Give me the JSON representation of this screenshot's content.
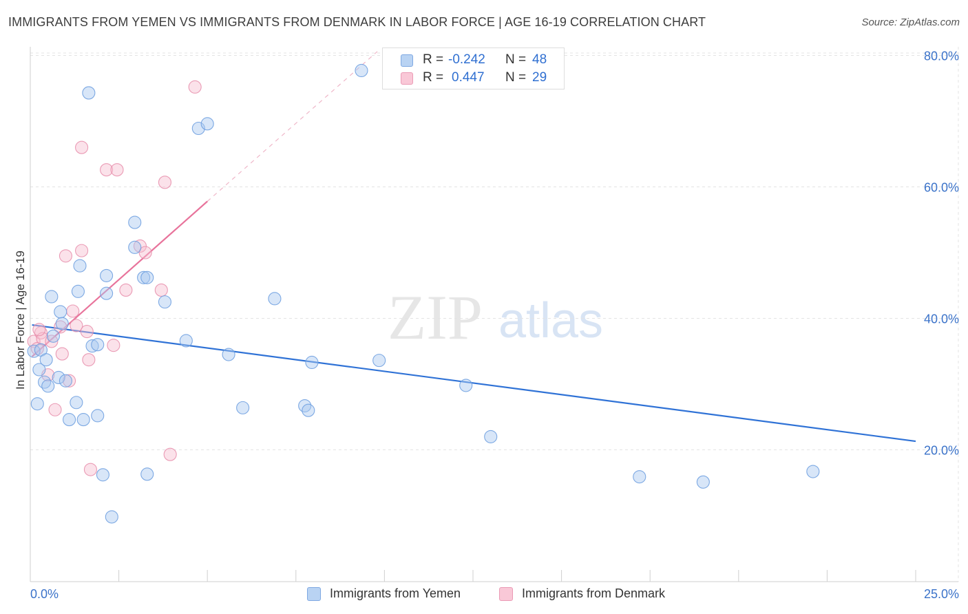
{
  "header": {
    "title": "IMMIGRANTS FROM YEMEN VS IMMIGRANTS FROM DENMARK IN LABOR FORCE | AGE 16-19 CORRELATION CHART",
    "source": "Source: ZipAtlas.com"
  },
  "legend": {
    "r_label": "R =",
    "n_label": "N =",
    "yemen": {
      "r": "-0.242",
      "n": "48"
    },
    "denmark": {
      "r": "0.447",
      "n": "29"
    }
  },
  "watermark": {
    "zip": "ZIP",
    "atlas": "atlas"
  },
  "chart_data": {
    "type": "scatter",
    "title": "IMMIGRANTS FROM YEMEN VS IMMIGRANTS FROM DENMARK IN LABOR FORCE | AGE 16-19 CORRELATION CHART",
    "xlabel": "",
    "ylabel": "In Labor Force | Age 16-19",
    "xlim": [
      0,
      25
    ],
    "ylim": [
      0,
      82
    ],
    "x_tick_labels": [
      "0.0%",
      "25.0%"
    ],
    "y_ticks": [
      20,
      40,
      60,
      80
    ],
    "y_tick_labels": [
      "20.0%",
      "40.0%",
      "60.0%",
      "80.0%"
    ],
    "x_minor_ticks": [
      2.5,
      5,
      7.5,
      10,
      12.5,
      15,
      17.5,
      20,
      22.5,
      25
    ],
    "grid": true,
    "legend_position": "bottom",
    "colors": {
      "yemen_fill": "#a8c8f0",
      "yemen_stroke": "#6fa0e0",
      "yemen_line": "#2f72d6",
      "denmark_fill": "#f7bfd0",
      "denmark_stroke": "#e890ad",
      "denmark_line": "#e8739b",
      "grid": "#e3e3e3",
      "tick_text": "#3a72c9"
    },
    "series": [
      {
        "name": "Immigrants from Yemen",
        "r": -0.242,
        "n": 48,
        "trend": {
          "x": [
            0.05,
            25
          ],
          "y": [
            39.0,
            21.3
          ]
        },
        "points": [
          [
            0.1,
            35.0
          ],
          [
            0.2,
            27.0
          ],
          [
            0.25,
            32.2
          ],
          [
            0.3,
            35.2
          ],
          [
            0.4,
            30.3
          ],
          [
            0.45,
            33.7
          ],
          [
            0.5,
            29.7
          ],
          [
            0.6,
            43.3
          ],
          [
            0.65,
            37.3
          ],
          [
            0.8,
            31.0
          ],
          [
            0.85,
            41.0
          ],
          [
            0.9,
            39.2
          ],
          [
            1.0,
            30.5
          ],
          [
            1.1,
            24.6
          ],
          [
            1.3,
            27.2
          ],
          [
            1.35,
            44.1
          ],
          [
            1.4,
            48.0
          ],
          [
            1.5,
            24.6
          ],
          [
            1.65,
            74.3
          ],
          [
            1.75,
            35.8
          ],
          [
            1.9,
            36.0
          ],
          [
            1.9,
            25.2
          ],
          [
            2.05,
            16.2
          ],
          [
            2.15,
            46.5
          ],
          [
            2.15,
            43.8
          ],
          [
            2.3,
            9.8
          ],
          [
            2.95,
            54.6
          ],
          [
            2.95,
            50.8
          ],
          [
            3.2,
            46.2
          ],
          [
            3.3,
            46.2
          ],
          [
            3.3,
            16.3
          ],
          [
            3.8,
            42.5
          ],
          [
            4.4,
            36.6
          ],
          [
            4.75,
            68.9
          ],
          [
            5.0,
            69.6
          ],
          [
            5.6,
            34.5
          ],
          [
            6.0,
            26.4
          ],
          [
            6.9,
            43.0
          ],
          [
            7.75,
            26.7
          ],
          [
            7.85,
            26.0
          ],
          [
            7.95,
            33.3
          ],
          [
            9.35,
            77.7
          ],
          [
            9.85,
            33.6
          ],
          [
            12.3,
            29.8
          ],
          [
            13.0,
            22.0
          ],
          [
            17.2,
            15.9
          ],
          [
            19.0,
            15.1
          ],
          [
            22.1,
            16.7
          ]
        ]
      },
      {
        "name": "Immigrants from Denmark",
        "r": 0.447,
        "n": 29,
        "trend": {
          "x": [
            0.05,
            5.0
          ],
          "y": [
            34.2,
            57.8
          ]
        },
        "trend_extension": {
          "x": [
            5.0,
            9.8
          ],
          "y": [
            57.8,
            80.6
          ]
        },
        "points": [
          [
            0.1,
            36.5
          ],
          [
            0.2,
            35.4
          ],
          [
            0.3,
            37.8
          ],
          [
            0.35,
            36.9
          ],
          [
            0.5,
            31.4
          ],
          [
            0.6,
            36.5
          ],
          [
            0.7,
            26.1
          ],
          [
            0.85,
            38.7
          ],
          [
            0.9,
            34.6
          ],
          [
            1.0,
            49.5
          ],
          [
            1.1,
            30.5
          ],
          [
            1.2,
            41.1
          ],
          [
            1.3,
            38.9
          ],
          [
            1.45,
            50.3
          ],
          [
            1.45,
            66.0
          ],
          [
            1.6,
            38.0
          ],
          [
            1.65,
            33.7
          ],
          [
            1.7,
            17.0
          ],
          [
            2.15,
            62.6
          ],
          [
            2.35,
            35.9
          ],
          [
            2.45,
            62.6
          ],
          [
            2.7,
            44.3
          ],
          [
            3.1,
            51.0
          ],
          [
            3.25,
            50.0
          ],
          [
            3.7,
            44.3
          ],
          [
            3.8,
            60.7
          ],
          [
            3.95,
            19.3
          ],
          [
            4.65,
            75.2
          ],
          [
            0.25,
            38.3
          ]
        ]
      }
    ]
  },
  "axes": {
    "ylabel": "In Labor Force | Age 16-19",
    "x_min_label": "0.0%",
    "x_max_label": "25.0%"
  },
  "legend_bottom": {
    "yemen": "Immigrants from Yemen",
    "denmark": "Immigrants from Denmark"
  }
}
